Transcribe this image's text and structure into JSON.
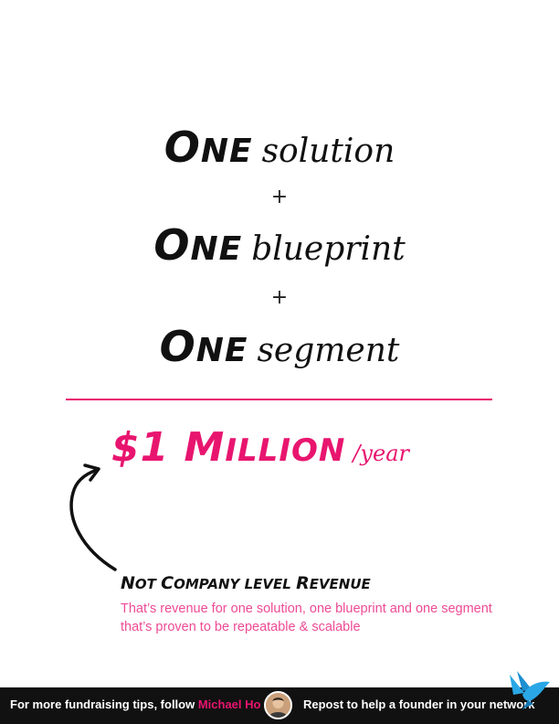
{
  "equation": {
    "rows": [
      {
        "big_first": "O",
        "big_rest": "NE",
        "script": "solution"
      },
      {
        "big_first": "O",
        "big_rest": "NE",
        "script": "blueprint"
      },
      {
        "big_first": "O",
        "big_rest": "NE",
        "script": "segment"
      }
    ],
    "plus": "+"
  },
  "headline": {
    "amount_prefix": "$1 M",
    "amount_rest": "ILLION",
    "period": "/year"
  },
  "note": {
    "title_parts": [
      "N",
      "OT ",
      "C",
      "OMPANY LEVEL ",
      "R",
      "EVENUE"
    ],
    "body": "That’s revenue for one solution, one blueprint and one segment that’s proven to be repeatable & scalable"
  },
  "footer": {
    "left_text": "For more fundraising tips, follow ",
    "author": "Michael Ho",
    "right_text": "Repost to help a founder in your network"
  },
  "colors": {
    "accent": "#e8156f",
    "note_text": "#ee4a95",
    "footer_bg": "#111111"
  },
  "icons": {
    "arrow": "curved-arrow-icon",
    "avatar": "author-avatar",
    "logo": "bird-logo-icon"
  }
}
